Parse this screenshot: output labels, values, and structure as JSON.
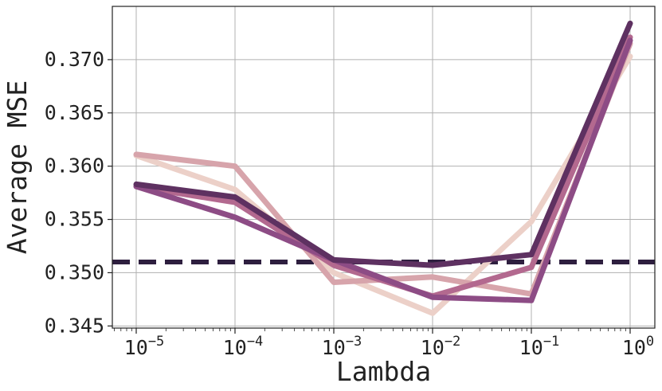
{
  "chart_data": {
    "type": "line",
    "xlabel": "Lambda",
    "ylabel": "Average MSE",
    "x_scale": "log",
    "x": [
      1e-05,
      0.0001,
      0.001,
      0.01,
      0.1,
      1
    ],
    "x_ticks": [
      {
        "base": "10",
        "exp": "−5"
      },
      {
        "base": "10",
        "exp": "−4"
      },
      {
        "base": "10",
        "exp": "−3"
      },
      {
        "base": "10",
        "exp": "−2"
      },
      {
        "base": "10",
        "exp": "−1"
      },
      {
        "base": "10",
        "exp": "0"
      }
    ],
    "ylim": [
      0.3448,
      0.375
    ],
    "y_ticks": [
      0.345,
      0.35,
      0.355,
      0.36,
      0.365,
      0.37
    ],
    "y_tick_labels": [
      "0.345",
      "0.350",
      "0.355",
      "0.360",
      "0.365",
      "0.370"
    ],
    "grid": true,
    "legend": "none",
    "series": [
      {
        "color": "#ecd0c8",
        "values": [
          0.361,
          0.3578,
          0.35,
          0.3462,
          0.3548,
          0.3703
        ]
      },
      {
        "color": "#d7a4ab",
        "values": [
          0.3611,
          0.36,
          0.3491,
          0.3496,
          0.348,
          0.3715
        ]
      },
      {
        "color": "#b3698f",
        "values": [
          0.3581,
          0.3566,
          0.3507,
          0.3478,
          0.3505,
          0.3721
        ]
      },
      {
        "color": "#8d4c85",
        "values": [
          0.3581,
          0.3552,
          0.3512,
          0.3477,
          0.3474,
          0.3718
        ]
      },
      {
        "color": "#5e3161",
        "values": [
          0.3583,
          0.3571,
          0.3512,
          0.3507,
          0.3517,
          0.3734
        ]
      }
    ],
    "baseline": {
      "value": 0.351,
      "style": "dashed",
      "color": "#2e1f3f"
    }
  }
}
